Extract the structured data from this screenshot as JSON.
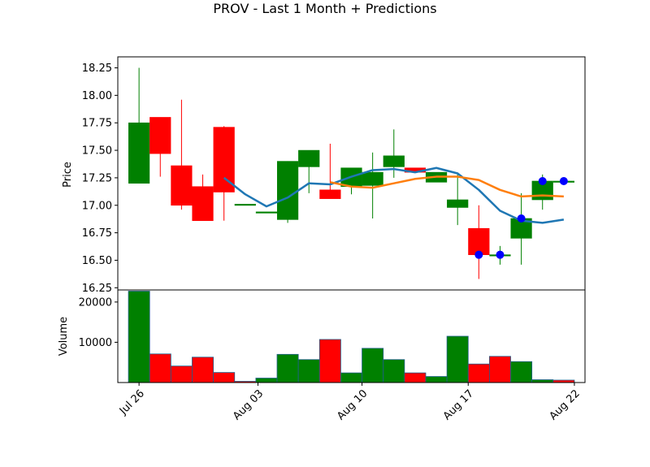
{
  "chart_data": {
    "type": "candlestick",
    "title": "PROV - Last 1 Month + Predictions",
    "price_panel": {
      "ylabel": "Price",
      "ylim": [
        16.23,
        18.35
      ],
      "yticks": [
        "16.25",
        "16.50",
        "16.75",
        "17.00",
        "17.25",
        "17.50",
        "17.75",
        "18.00",
        "18.25"
      ],
      "ytick_values": [
        16.25,
        16.5,
        16.75,
        17.0,
        17.25,
        17.5,
        17.75,
        18.0,
        18.25
      ]
    },
    "volume_panel": {
      "ylabel": "Volume",
      "ylim": [
        0,
        23000
      ],
      "yticks": [
        "10000",
        "20000"
      ],
      "ytick_values": [
        10000,
        20000
      ]
    },
    "xlim": [
      -1,
      21
    ],
    "xticks": [
      {
        "label": "Jul 26",
        "index": 0
      },
      {
        "label": "Aug 03",
        "index": 5.6
      },
      {
        "label": "Aug 10",
        "index": 10.5
      },
      {
        "label": "Aug 17",
        "index": 15.5
      },
      {
        "label": "Aug 22",
        "index": 20.5
      }
    ],
    "candles": [
      {
        "open": 17.2,
        "high": 18.25,
        "low": 17.2,
        "close": 17.75,
        "volume": 22700
      },
      {
        "open": 17.8,
        "high": 17.8,
        "low": 17.26,
        "close": 17.47,
        "volume": 7100
      },
      {
        "open": 17.36,
        "high": 17.96,
        "low": 16.96,
        "close": 17.0,
        "volume": 4100
      },
      {
        "open": 17.17,
        "high": 17.28,
        "low": 16.86,
        "close": 16.86,
        "volume": 6300
      },
      {
        "open": 17.71,
        "high": 17.72,
        "low": 16.86,
        "close": 17.12,
        "volume": 2500
      },
      {
        "open": 17.01,
        "high": 17.01,
        "low": 17.01,
        "close": 17.01,
        "volume": 300
      },
      {
        "open": 16.93,
        "high": 16.94,
        "low": 16.93,
        "close": 16.94,
        "volume": 1100
      },
      {
        "open": 16.87,
        "high": 17.4,
        "low": 16.84,
        "close": 17.4,
        "volume": 7000
      },
      {
        "open": 17.35,
        "high": 17.5,
        "low": 17.11,
        "close": 17.5,
        "volume": 5700
      },
      {
        "open": 17.14,
        "high": 17.56,
        "low": 17.06,
        "close": 17.06,
        "volume": 10700
      },
      {
        "open": 17.17,
        "high": 17.34,
        "low": 17.1,
        "close": 17.34,
        "volume": 2400
      },
      {
        "open": 17.18,
        "high": 17.48,
        "low": 16.88,
        "close": 17.3,
        "volume": 8500
      },
      {
        "open": 17.35,
        "high": 17.69,
        "low": 17.25,
        "close": 17.45,
        "volume": 5700
      },
      {
        "open": 17.34,
        "high": 17.34,
        "low": 17.3,
        "close": 17.3,
        "volume": 2400
      },
      {
        "open": 17.21,
        "high": 17.3,
        "low": 17.21,
        "close": 17.3,
        "volume": 1500
      },
      {
        "open": 16.98,
        "high": 17.28,
        "low": 16.82,
        "close": 17.05,
        "volume": 11500
      },
      {
        "open": 16.79,
        "high": 17.0,
        "low": 16.33,
        "close": 16.55,
        "volume": 4600
      },
      {
        "open": 16.55,
        "high": 16.63,
        "low": 16.46,
        "close": 16.55,
        "volume": 6500
      },
      {
        "open": 16.7,
        "high": 17.11,
        "low": 16.46,
        "close": 16.88,
        "volume": 5200
      },
      {
        "open": 17.05,
        "high": 17.28,
        "low": 16.96,
        "close": 17.22,
        "volume": 700
      },
      {
        "open": 17.22,
        "high": 17.24,
        "low": 17.21,
        "close": 17.22,
        "volume": 600
      }
    ],
    "volume_bar_colors": [
      "green",
      "red",
      "red",
      "red",
      "red",
      "red",
      "green",
      "green",
      "green",
      "red",
      "green",
      "green",
      "green",
      "red",
      "green",
      "green",
      "red",
      "red",
      "green",
      "green",
      "red"
    ],
    "predictions": [
      {
        "index": 16,
        "value": 16.55
      },
      {
        "index": 17,
        "value": 16.55
      },
      {
        "index": 18,
        "value": 16.88
      },
      {
        "index": 19,
        "value": 17.22
      },
      {
        "index": 20,
        "value": 17.22
      }
    ],
    "lines": [
      {
        "color": "#1f77b4",
        "start_index": 4,
        "values": [
          17.25,
          17.1,
          16.99,
          17.07,
          17.2,
          17.19,
          17.26,
          17.32,
          17.33,
          17.3,
          17.34,
          17.29,
          17.14,
          16.95,
          16.86,
          16.84,
          16.87
        ]
      },
      {
        "color": "#ff7f0e",
        "start_index": 9,
        "values": [
          17.21,
          17.17,
          17.16,
          17.2,
          17.24,
          17.26,
          17.26,
          17.23,
          17.14,
          17.08,
          17.09,
          17.08
        ]
      }
    ],
    "colors": {
      "up": "#008000",
      "down": "#ff0000",
      "prediction": "#0000ff"
    },
    "grid": false,
    "legend": "none"
  }
}
